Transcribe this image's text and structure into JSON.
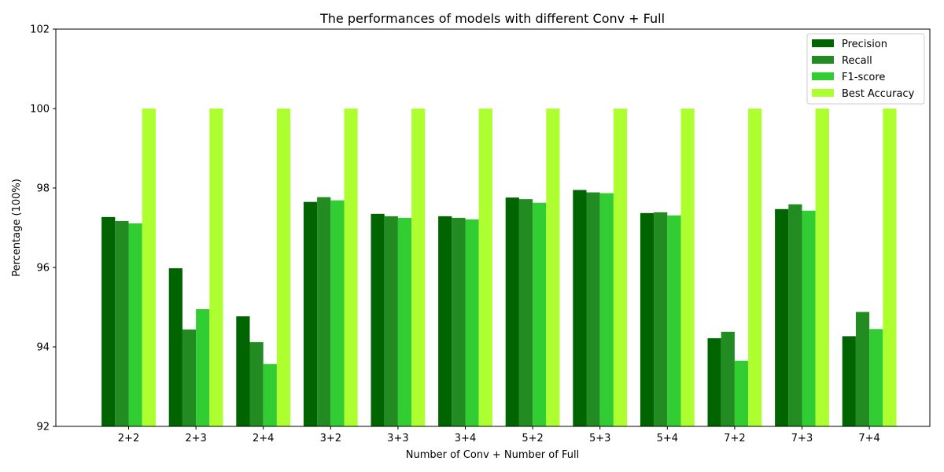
{
  "chart_data": {
    "type": "bar",
    "title": "The performances of models with different Conv + Full",
    "xlabel": "Number of Conv + Number of Full",
    "ylabel": "Percentage (100%)",
    "ylim": [
      92,
      102
    ],
    "yticks": [
      92,
      94,
      96,
      98,
      100,
      102
    ],
    "categories": [
      "2+2",
      "2+3",
      "2+4",
      "3+2",
      "3+3",
      "3+4",
      "5+2",
      "5+3",
      "5+4",
      "7+2",
      "7+3",
      "7+4"
    ],
    "series": [
      {
        "name": "Precision",
        "color": "#006400",
        "values": [
          97.27,
          95.98,
          94.77,
          97.65,
          97.35,
          97.29,
          97.76,
          97.95,
          97.37,
          94.22,
          97.47,
          94.27
        ]
      },
      {
        "name": "Recall",
        "color": "#228B22",
        "values": [
          97.17,
          94.44,
          94.12,
          97.77,
          97.29,
          97.25,
          97.72,
          97.89,
          97.39,
          94.38,
          97.59,
          94.88
        ]
      },
      {
        "name": "F1-score",
        "color": "#32CD32",
        "values": [
          97.11,
          94.95,
          93.57,
          97.69,
          97.25,
          97.21,
          97.63,
          97.87,
          97.31,
          93.65,
          97.43,
          94.45
        ]
      },
      {
        "name": "Best Accuracy",
        "color": "#ADFF2F",
        "values": [
          100,
          100,
          100,
          100,
          100,
          100,
          100,
          100,
          100,
          100,
          100,
          100
        ]
      }
    ],
    "grid": false,
    "legend_position": "top-right"
  }
}
